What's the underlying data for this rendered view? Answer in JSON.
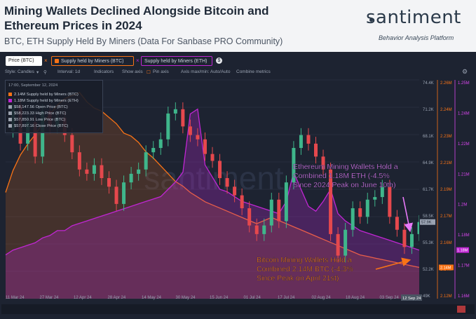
{
  "header": {
    "title": "Mining Wallets Declined Alongside Bitcoin and Ethereum Prices in 2024",
    "subtitle": "BTC, ETH Supply Held By Miners (Data For Sanbase PRO Community)",
    "logo": "santiment",
    "tagline": "Behavior Analysis Platform"
  },
  "legend_tabs": [
    {
      "label": "Price (BTC)",
      "color": "#9ca3af"
    },
    {
      "label": "Supply held by Miners (BTC)",
      "color": "#f97316"
    },
    {
      "label": "Supply held by Miners (ETH)",
      "color": "#c026d3"
    }
  ],
  "toolbar": {
    "style": "Style: Candles",
    "interval": "Interval: 1d",
    "indicators": "Indicators",
    "show_axis": "Show axis",
    "pin_axis": "Pin axis",
    "axis_mode": "Axis max/min: Auto/Auto",
    "combine": "Combine metrics"
  },
  "info_box": {
    "date": "17:00, September 12, 2024",
    "rows": [
      {
        "value": "2.14M",
        "label": "Supply held by Miners (BTC)",
        "color": "#f97316"
      },
      {
        "value": "1.18M",
        "label": "Supply held by Miners (ETH)",
        "color": "#c026d3"
      },
      {
        "value": "$58,147.56",
        "label": "Open Price (BTC)",
        "color": "#9ca3af"
      },
      {
        "value": "$58,223.33",
        "label": "High Price (BTC)",
        "color": "#9ca3af"
      },
      {
        "value": "$57,850.91",
        "label": "Low Price (BTC)",
        "color": "#9ca3af"
      },
      {
        "value": "$57,897.16",
        "label": "Close Price (BTC)",
        "color": "#9ca3af"
      }
    ]
  },
  "annotations": {
    "eth": [
      "Ethereum Mining Wallets Hold a",
      "Combined 1.18M ETH (-4.5%",
      "Since 2024 Peak on June 10th)"
    ],
    "btc": [
      "Bitcoin Mining Wallets Hold a",
      "Combined 2.14M BTC (-4.3%",
      "Since Peak on April 21st)"
    ]
  },
  "watermark": "santiment",
  "colors": {
    "background": "#1d2331",
    "btc_supply": "#f97316",
    "eth_supply": "#c026d3",
    "candle_up": "#3fb68b",
    "candle_down": "#e5484d",
    "eth_annotation": "#e879f9",
    "btc_annotation": "#f97316"
  },
  "chart_data": {
    "type": "line",
    "x_tick_labels": [
      "11 Mar 24",
      "27 Mar 24",
      "12 Apr 24",
      "28 Apr 24",
      "14 May 24",
      "30 May 24",
      "15 Jun 24",
      "01 Jul 24",
      "17 Jul 24",
      "02 Aug 24",
      "18 Aug 24",
      "03 Sep 24"
    ],
    "x_last_label": "12 Sep 24",
    "axes": {
      "price_btc": {
        "ticks": [
          "74.4K",
          "71.2K",
          "68.1K",
          "64.9K",
          "61.7K",
          "58.5K",
          "55.3K",
          "52.2K",
          "49K"
        ],
        "range": [
          49000,
          74400
        ],
        "current": "57.9K"
      },
      "supply_btc": {
        "ticks": [
          "2.26M",
          "2.24M",
          "2.23M",
          "2.21M",
          "2.19M",
          "2.17M",
          "2.16M",
          "2.14M",
          "2.12M"
        ],
        "range": [
          2120000,
          2260000
        ],
        "current": "2.14M"
      },
      "supply_eth": {
        "ticks": [
          "1.25M",
          "1.24M",
          "1.22M",
          "1.21M",
          "1.2M",
          "1.18M",
          "1.17M",
          "1.16M"
        ],
        "range": [
          1160000,
          1250000
        ],
        "current": "1.18M"
      }
    },
    "series": [
      {
        "name": "Supply held by Miners (BTC)",
        "axis": "supply_btc",
        "values": [
          2.188,
          2.202,
          2.212,
          2.219,
          2.225,
          2.232,
          2.238,
          2.244,
          2.248,
          2.25,
          2.252,
          2.246,
          2.242,
          2.24,
          2.236,
          2.232,
          2.226,
          2.224,
          2.22,
          2.214,
          2.21,
          2.205,
          2.2,
          2.195,
          2.192,
          2.188,
          2.185,
          2.182,
          2.18,
          2.178,
          2.176,
          2.174,
          2.172,
          2.17,
          2.168,
          2.17,
          2.172,
          2.17,
          2.168,
          2.166,
          2.164,
          2.162,
          2.16,
          2.158,
          2.156,
          2.154,
          2.152,
          2.15,
          2.148,
          2.147,
          2.146,
          2.145,
          2.144,
          2.143,
          2.142,
          2.141,
          2.14
        ]
      },
      {
        "name": "Supply held by Miners (ETH)",
        "axis": "supply_eth",
        "values": [
          1.178,
          1.18,
          1.181,
          1.182,
          1.183,
          1.185,
          1.186,
          1.188,
          1.188,
          1.19,
          1.191,
          1.192,
          1.193,
          1.194,
          1.195,
          1.196,
          1.197,
          1.198,
          1.199,
          1.2,
          1.201,
          1.202,
          1.205,
          1.208,
          1.212,
          1.236,
          1.238,
          1.215,
          1.21,
          1.205,
          1.204,
          1.202,
          1.2,
          1.199,
          1.198,
          1.197,
          1.196,
          1.195,
          1.2,
          1.212,
          1.205,
          1.198,
          1.196,
          1.2,
          1.205,
          1.195,
          1.192,
          1.19,
          1.188,
          1.187,
          1.186,
          1.185,
          1.184,
          1.183,
          1.182,
          1.181,
          1.18
        ]
      },
      {
        "name": "Price (BTC)",
        "axis": "price_btc",
        "values": [
          68.5,
          71.5,
          67,
          69.5,
          65.5,
          70.8,
          69,
          70,
          68,
          66,
          64,
          63.5,
          64.5,
          63,
          62,
          60,
          62.5,
          63.5,
          64,
          66,
          66.5,
          67.5,
          70.5,
          71,
          69,
          68,
          67.5,
          65.8,
          65,
          63,
          62,
          61,
          59.5,
          57.5,
          56.5,
          57.5,
          60.5,
          58,
          62.5,
          66.5,
          68,
          67,
          65.5,
          64,
          56.5,
          54,
          57,
          59.5,
          58.5,
          60.5,
          60.8,
          62,
          58.5,
          57,
          55,
          56.5,
          57.9
        ]
      }
    ]
  }
}
